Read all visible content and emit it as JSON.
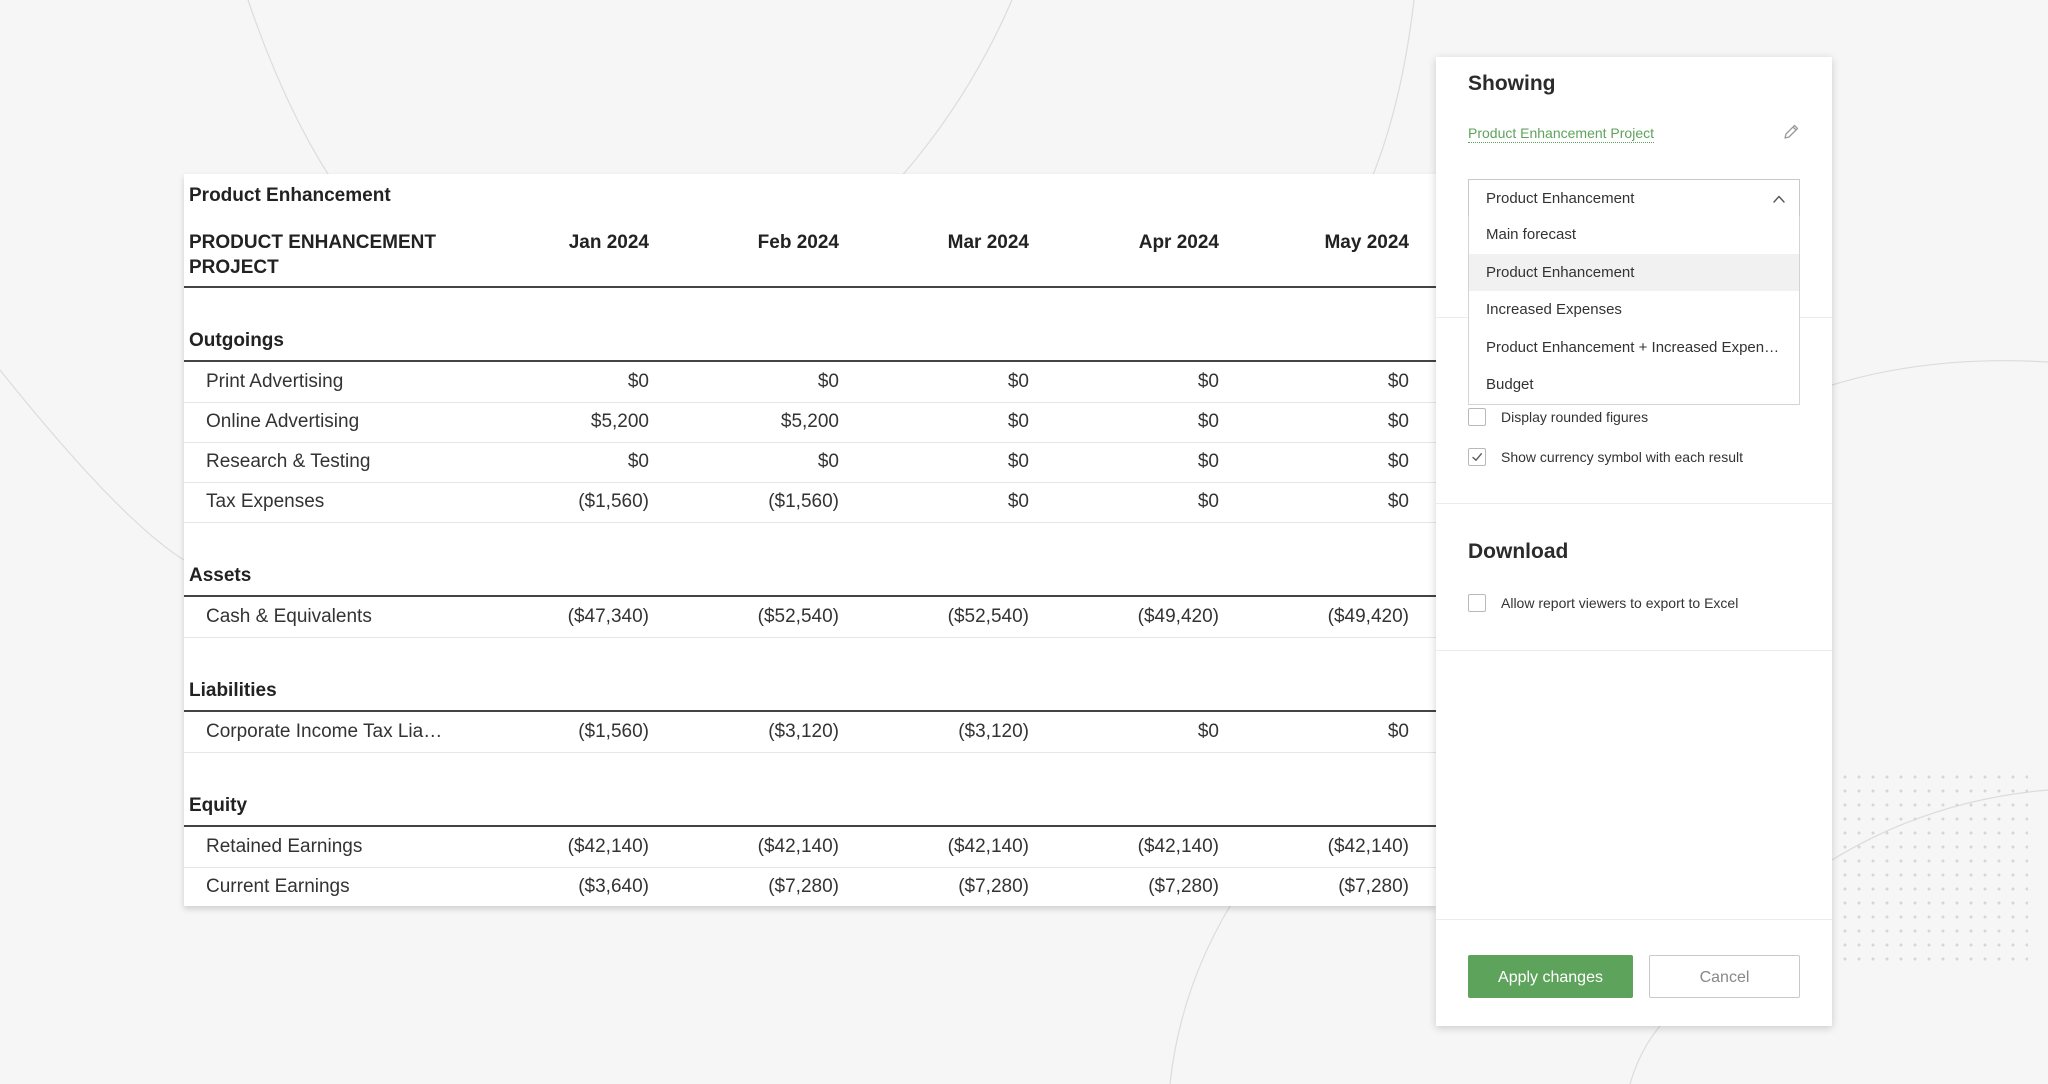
{
  "report": {
    "title": "Product Enhancement",
    "project_header": "PRODUCT ENHANCEMENT PROJECT",
    "months": [
      "Jan 2024",
      "Feb 2024",
      "Mar 2024",
      "Apr 2024",
      "May 2024"
    ],
    "sections": [
      {
        "name": "Outgoings",
        "rows": [
          {
            "label": "Print Advertising",
            "values": [
              "$0",
              "$0",
              "$0",
              "$0",
              "$0"
            ]
          },
          {
            "label": "Online Advertising",
            "values": [
              "$5,200",
              "$5,200",
              "$0",
              "$0",
              "$0"
            ]
          },
          {
            "label": "Research & Testing",
            "values": [
              "$0",
              "$0",
              "$0",
              "$0",
              "$0"
            ]
          },
          {
            "label": "Tax Expenses",
            "values": [
              "($1,560)",
              "($1,560)",
              "$0",
              "$0",
              "$0"
            ]
          }
        ]
      },
      {
        "name": "Assets",
        "rows": [
          {
            "label": "Cash & Equivalents",
            "values": [
              "($47,340)",
              "($52,540)",
              "($52,540)",
              "($49,420)",
              "($49,420)"
            ]
          }
        ]
      },
      {
        "name": "Liabilities",
        "rows": [
          {
            "label": "Corporate Income Tax Lia…",
            "values": [
              "($1,560)",
              "($3,120)",
              "($3,120)",
              "$0",
              "$0"
            ]
          }
        ]
      },
      {
        "name": "Equity",
        "rows": [
          {
            "label": "Retained Earnings",
            "values": [
              "($42,140)",
              "($42,140)",
              "($42,140)",
              "($42,140)",
              "($42,140)"
            ]
          },
          {
            "label": "Current Earnings",
            "values": [
              "($3,640)",
              "($7,280)",
              "($7,280)",
              "($7,280)",
              "($7,280)"
            ]
          }
        ]
      }
    ]
  },
  "panel": {
    "showing_title": "Showing",
    "project_link": "Product Enhancement Project",
    "select": {
      "value": "Product Enhancement",
      "options": [
        "Main forecast",
        "Product Enhancement",
        "Increased Expenses",
        "Product Enhancement + Increased Expen…",
        "Budget"
      ],
      "active_index": 1
    },
    "options": {
      "rounded_label": "Display rounded figures",
      "rounded_checked": false,
      "currency_label": "Show currency symbol with each result",
      "currency_checked": true
    },
    "download": {
      "title": "Download",
      "export_label": "Allow report viewers to export to Excel",
      "export_checked": false
    },
    "buttons": {
      "apply": "Apply changes",
      "cancel": "Cancel"
    }
  },
  "colors": {
    "accent_green": "#5ea35c",
    "background": "#f6f6f6"
  },
  "icons": [
    "pencil-icon",
    "chevron-up-icon",
    "checkmark-icon"
  ]
}
